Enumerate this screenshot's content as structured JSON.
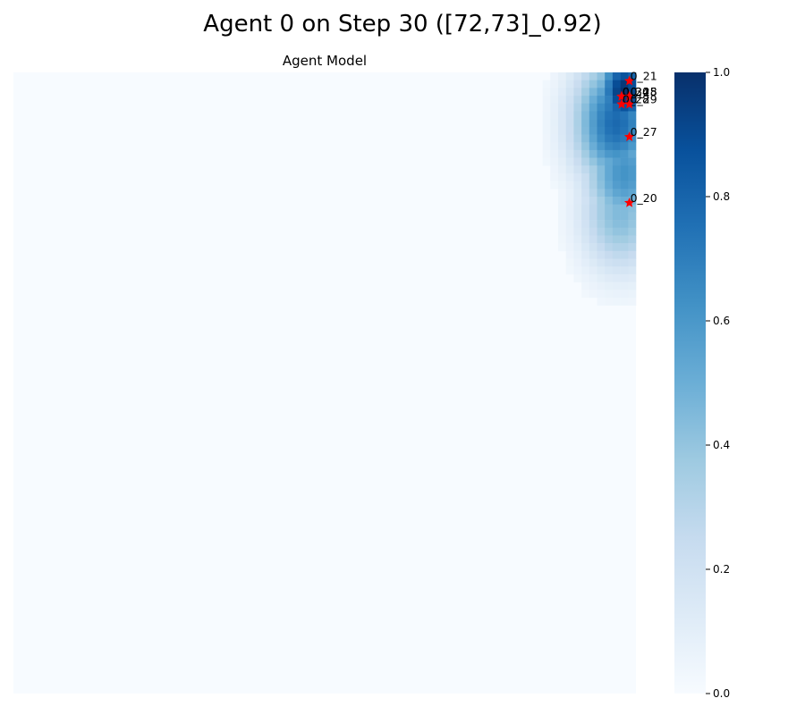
{
  "figure": {
    "title": "Agent 0 on Step 30 ([72,73]_0.92)"
  },
  "chart_data": {
    "type": "heatmap",
    "subtitle": "Agent Model",
    "grid": {
      "cols": 80,
      "rows": 80
    },
    "colormap": "Blues",
    "value_range": [
      0,
      1
    ],
    "colorbar": {
      "ticks": [
        0.0,
        0.2,
        0.4,
        0.6,
        0.8,
        1.0
      ],
      "tick_labels": [
        "0.0",
        "0.2",
        "0.4",
        "0.6",
        "0.8",
        "1.0"
      ]
    },
    "axes_visible": false,
    "high_region": {
      "description": "nonzero values concentrated in top-right corner",
      "hotspots": [
        {
          "col": 78.5,
          "row": 2.5,
          "value": 1.0,
          "spread": 4.5
        },
        {
          "col": 77.5,
          "row": 6.5,
          "value": 0.78,
          "spread": 7.0
        },
        {
          "col": 78.5,
          "row": 13.0,
          "value": 0.62,
          "spread": 6.5
        },
        {
          "col": 78.0,
          "row": 18.0,
          "value": 0.45,
          "spread": 6.5
        }
      ]
    },
    "markers": [
      {
        "label": "0_21",
        "col": 79,
        "row": 0.6,
        "color": "#ff0000"
      },
      {
        "label": "0_24",
        "col": 78,
        "row": 2.6,
        "color": "#ff0000"
      },
      {
        "label": "0_30",
        "col": 78,
        "row": 2.6,
        "color": "#ff0000"
      },
      {
        "label": "0_25",
        "col": 79,
        "row": 2.6,
        "color": "#ff0000"
      },
      {
        "label": "0_18",
        "col": 79,
        "row": 2.6,
        "color": "#ff0000"
      },
      {
        "label": "0_28",
        "col": 78,
        "row": 3.6,
        "color": "#ff0000"
      },
      {
        "label": "0_29",
        "col": 79,
        "row": 3.6,
        "color": "#ff0000"
      },
      {
        "label": "0_27",
        "col": 79,
        "row": 7.8,
        "color": "#ff0000"
      },
      {
        "label": "0_20",
        "col": 79,
        "row": 16.3,
        "color": "#ff0000"
      }
    ]
  }
}
